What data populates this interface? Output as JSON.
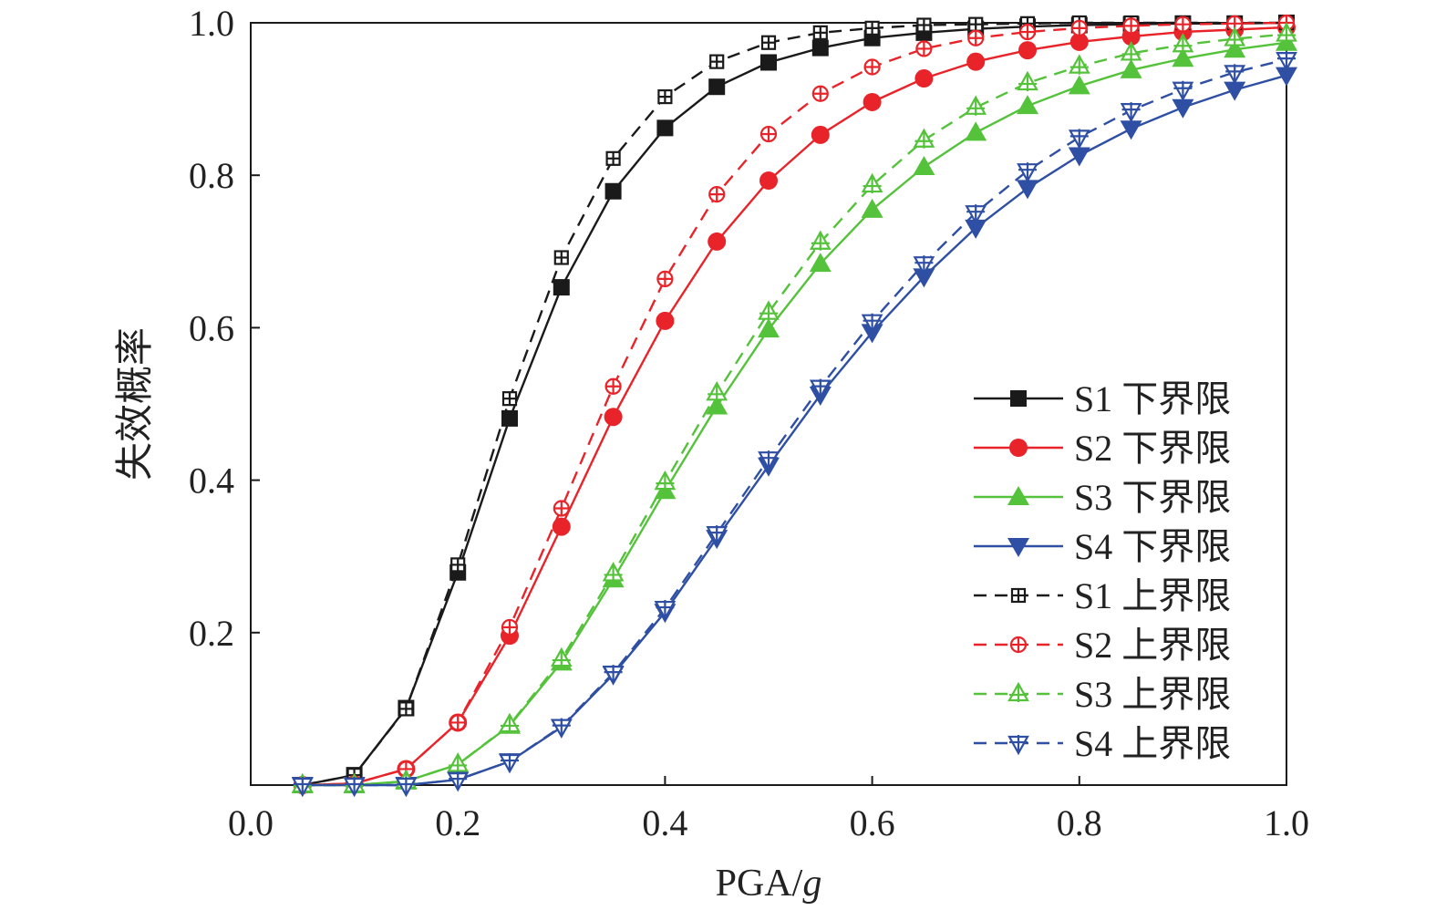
{
  "chart_data": {
    "type": "line",
    "xlabel": "PGA/",
    "xlabel_italic": "g",
    "ylabel": "失效概率",
    "xlim": [
      0,
      1
    ],
    "ylim": [
      0,
      1
    ],
    "x_ticks": [
      "0.0",
      "0.2",
      "0.4",
      "0.6",
      "0.8",
      "1.0"
    ],
    "y_ticks": [
      "0.2",
      "0.4",
      "0.6",
      "0.8",
      "1.0"
    ],
    "legend_position": "lower-right",
    "x": [
      0.05,
      0.1,
      0.15,
      0.2,
      0.25,
      0.3,
      0.35,
      0.4,
      0.45,
      0.5,
      0.55,
      0.6,
      0.65,
      0.7,
      0.75,
      0.8,
      0.85,
      0.9,
      0.95,
      1.0
    ],
    "series": [
      {
        "name": "S1 下界限",
        "color": "#1a1a1a",
        "dash": false,
        "marker": "square-filled",
        "values": [
          0.0,
          0.013,
          0.101,
          0.279,
          0.481,
          0.653,
          0.779,
          0.862,
          0.916,
          0.948,
          0.967,
          0.98,
          0.987,
          0.992,
          0.995,
          0.997,
          0.998,
          0.999,
          0.999,
          1.0
        ]
      },
      {
        "name": "S2 下界限",
        "color": "#e8242a",
        "dash": false,
        "marker": "circle-filled",
        "values": [
          0.0,
          0.002,
          0.021,
          0.082,
          0.196,
          0.339,
          0.483,
          0.609,
          0.713,
          0.793,
          0.853,
          0.896,
          0.927,
          0.949,
          0.964,
          0.975,
          0.982,
          0.988,
          0.991,
          0.994
        ]
      },
      {
        "name": "S3 下界限",
        "color": "#54c23a",
        "dash": false,
        "marker": "triangle-up-filled",
        "values": [
          0.0,
          0.0,
          0.005,
          0.027,
          0.078,
          0.161,
          0.27,
          0.386,
          0.497,
          0.598,
          0.684,
          0.755,
          0.811,
          0.856,
          0.891,
          0.917,
          0.938,
          0.953,
          0.965,
          0.974
        ]
      },
      {
        "name": "S4 下界限",
        "color": "#2e4fa3",
        "dash": false,
        "marker": "triangle-down-filled",
        "values": [
          0.0,
          0.0,
          0.0,
          0.007,
          0.031,
          0.076,
          0.145,
          0.227,
          0.324,
          0.419,
          0.512,
          0.594,
          0.667,
          0.731,
          0.783,
          0.826,
          0.861,
          0.889,
          0.912,
          0.931
        ]
      },
      {
        "name": "S1 上界限",
        "color": "#1a1a1a",
        "dash": true,
        "marker": "square-plus",
        "values": [
          0.0,
          0.013,
          0.1,
          0.289,
          0.507,
          0.692,
          0.822,
          0.903,
          0.949,
          0.974,
          0.987,
          0.993,
          0.997,
          0.998,
          0.999,
          1.0,
          1.0,
          1.0,
          1.0,
          1.0
        ]
      },
      {
        "name": "S2 上界限",
        "color": "#e8242a",
        "dash": true,
        "marker": "circle-plus",
        "values": [
          0.0,
          0.002,
          0.021,
          0.082,
          0.207,
          0.363,
          0.523,
          0.664,
          0.775,
          0.854,
          0.907,
          0.942,
          0.966,
          0.98,
          0.988,
          0.993,
          0.996,
          0.998,
          0.999,
          1.0
        ]
      },
      {
        "name": "S3 上界限",
        "color": "#54c23a",
        "dash": true,
        "marker": "triangle-up-plus",
        "values": [
          0.0,
          0.0,
          0.005,
          0.027,
          0.079,
          0.165,
          0.277,
          0.397,
          0.514,
          0.62,
          0.712,
          0.787,
          0.846,
          0.889,
          0.921,
          0.943,
          0.96,
          0.971,
          0.979,
          0.985
        ]
      },
      {
        "name": "S4 上界限",
        "color": "#2e4fa3",
        "dash": true,
        "marker": "triangle-down-plus",
        "values": [
          0.0,
          0.0,
          0.0,
          0.007,
          0.031,
          0.077,
          0.147,
          0.232,
          0.33,
          0.428,
          0.522,
          0.608,
          0.684,
          0.751,
          0.806,
          0.85,
          0.885,
          0.913,
          0.935,
          0.952
        ]
      }
    ]
  }
}
